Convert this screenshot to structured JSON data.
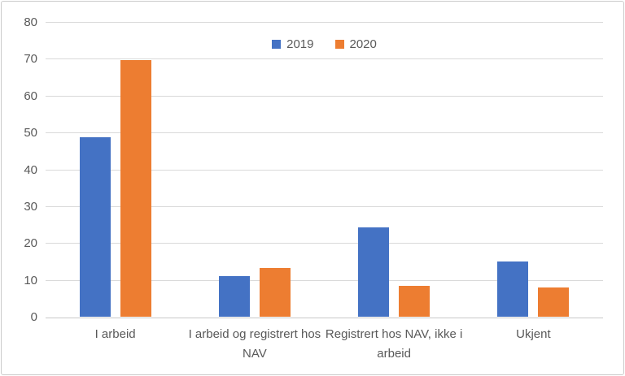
{
  "chart_data": {
    "type": "bar",
    "title": "",
    "xlabel": "",
    "ylabel": "",
    "categories": [
      "I arbeid",
      "I arbeid og registrert hos NAV",
      "Registrert hos NAV, ikke i arbeid",
      "Ukjent"
    ],
    "series": [
      {
        "name": "2019",
        "color": "#4472C4",
        "values": [
          49,
          11.2,
          24.4,
          15.2
        ]
      },
      {
        "name": "2020",
        "color": "#ED7D31",
        "values": [
          69.8,
          13.5,
          8.6,
          8.2
        ]
      }
    ],
    "ylim": [
      0,
      80
    ],
    "yticks": [
      0,
      10,
      20,
      30,
      40,
      50,
      60,
      70,
      80
    ],
    "grid": "horizontal",
    "legend_position": "top-center"
  },
  "legend": {
    "items": [
      {
        "label": "2019",
        "color": "#4472C4"
      },
      {
        "label": "2020",
        "color": "#ED7D31"
      }
    ]
  },
  "colors": {
    "bar_2019": "#4472C4",
    "bar_2020": "#ED7D31",
    "gridline": "#D9D9D9",
    "axis_line": "#C9C9C9",
    "text": "#595959",
    "frame_border": "#CBCBCB",
    "background": "#FFFFFF"
  }
}
